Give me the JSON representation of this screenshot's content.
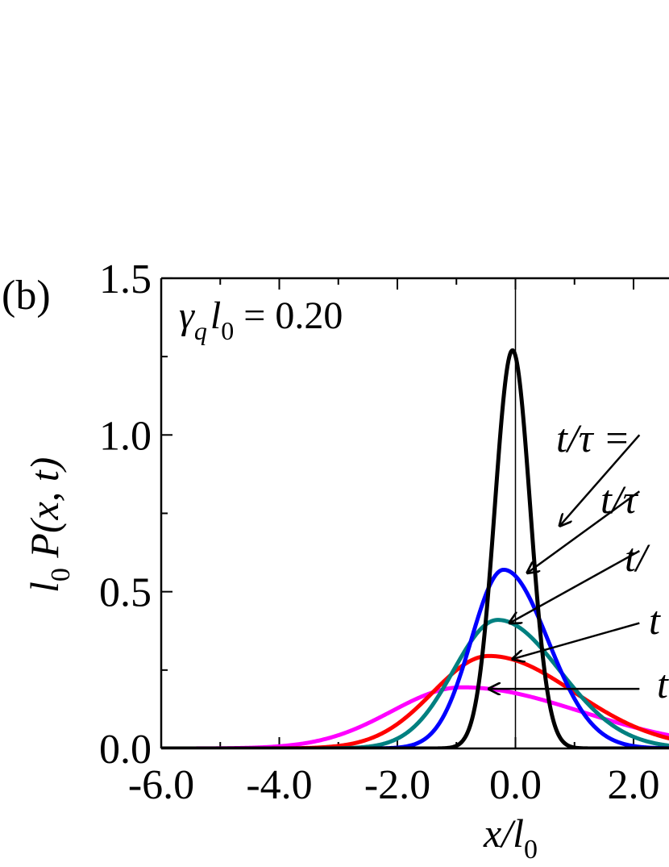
{
  "panel_label": "(b)",
  "annotation": {
    "gamma": "γ",
    "gamma_sub": "q",
    "l": "l",
    "l_sub": "0",
    "rest": " = 0.20"
  },
  "y_label": {
    "l": "l",
    "l_sub": "0",
    "rest": " P(x, t)"
  },
  "x_label": {
    "x": "x/l",
    "sub": "0"
  },
  "curve_labels": [
    "t/τ =",
    "t/τ",
    "t/",
    "t",
    "t"
  ],
  "colors": {
    "black": "#000000",
    "blue": "#0000ff",
    "teal": "#008080",
    "red": "#ff0000",
    "magenta": "#ff00ff"
  },
  "chart_data": {
    "type": "line",
    "xlim": [
      -6.0,
      2.8
    ],
    "ylim": [
      0.0,
      1.5
    ],
    "x_ticks": [
      -6.0,
      -4.0,
      -2.0,
      0.0,
      2.0
    ],
    "x_tick_labels": [
      "-6.0",
      "-4.0",
      "-2.0",
      "0.0",
      "2.0"
    ],
    "y_ticks": [
      0.0,
      0.5,
      1.0,
      1.5
    ],
    "y_tick_labels": [
      "0.0",
      "0.5",
      "1.0",
      "1.5"
    ],
    "vertical_line_x": 0.0,
    "series": [
      {
        "color": "#000000",
        "peak_x": -0.05,
        "peak_y": 1.27,
        "sigma_left": 0.3,
        "sigma_right": 0.3,
        "x_start": -6.0
      },
      {
        "color": "#0000ff",
        "peak_x": -0.2,
        "peak_y": 0.57,
        "sigma_left": 0.55,
        "sigma_right": 0.75,
        "x_start": -6.0
      },
      {
        "color": "#008080",
        "peak_x": -0.3,
        "peak_y": 0.41,
        "sigma_left": 0.75,
        "sigma_right": 1.05,
        "x_start": -6.0
      },
      {
        "color": "#ff0000",
        "peak_x": -0.45,
        "peak_y": 0.295,
        "sigma_left": 0.95,
        "sigma_right": 1.45,
        "x_start": -6.0
      },
      {
        "color": "#ff00ff",
        "peak_x": -0.9,
        "peak_y": 0.195,
        "sigma_left": 1.2,
        "sigma_right": 2.0,
        "x_start": -6.0
      }
    ],
    "arrows": [
      {
        "label_index": 0,
        "tip": [
          0.75,
          0.71
        ],
        "tail": [
          2.1,
          1.0
        ]
      },
      {
        "label_index": 1,
        "tip": [
          0.2,
          0.56
        ],
        "tail": [
          2.1,
          0.82
        ]
      },
      {
        "label_index": 2,
        "tip": [
          -0.1,
          0.4
        ],
        "tail": [
          2.1,
          0.63
        ]
      },
      {
        "label_index": 3,
        "tip": [
          -0.05,
          0.285
        ],
        "tail": [
          2.1,
          0.4
        ]
      },
      {
        "label_index": 4,
        "tip": [
          -0.45,
          0.19
        ],
        "tail": [
          2.1,
          0.19
        ]
      }
    ]
  }
}
